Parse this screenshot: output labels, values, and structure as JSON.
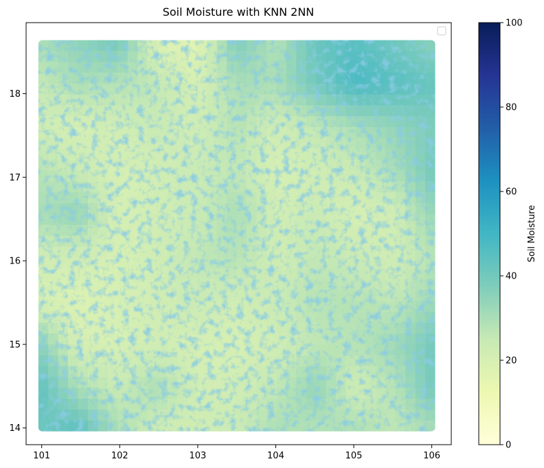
{
  "chart_data": {
    "type": "heatmap",
    "title": "Soil Moisture with KNN 2NN",
    "xlabel": "",
    "ylabel": "",
    "x_ticks": [
      101,
      102,
      103,
      104,
      105,
      106
    ],
    "y_ticks": [
      14,
      15,
      16,
      17,
      18
    ],
    "xlim": [
      100.8,
      106.25
    ],
    "ylim": [
      13.8,
      18.85
    ],
    "data_extent": {
      "x": [
        101.0,
        106.0
      ],
      "y": [
        14.0,
        18.6
      ]
    },
    "colorbar": {
      "label": "Soil Moisture",
      "range": [
        0,
        100
      ],
      "ticks": [
        0,
        20,
        40,
        60,
        80,
        100
      ],
      "colormap": "YlGnBu"
    },
    "legend": {
      "placement": "upper right",
      "entries": []
    },
    "grid": false,
    "colormap_stops": [
      "#ffffd9",
      "#edf8b1",
      "#c7e9b4",
      "#7fcdbb",
      "#41b6c4",
      "#1d91c0",
      "#225ea8",
      "#253494",
      "#081d58"
    ],
    "field_samples": {
      "x": [
        101.0,
        101.5,
        102.0,
        102.5,
        103.0,
        103.5,
        104.0,
        104.5,
        105.0,
        105.5,
        106.0
      ],
      "y": [
        18.6,
        18.1,
        17.6,
        17.1,
        16.6,
        16.1,
        15.6,
        15.1,
        14.6,
        14.0
      ],
      "values": [
        [
          30,
          35,
          40,
          18,
          16,
          38,
          28,
          42,
          45,
          40,
          35
        ],
        [
          25,
          30,
          28,
          26,
          20,
          30,
          30,
          40,
          48,
          45,
          42
        ],
        [
          22,
          20,
          22,
          24,
          22,
          28,
          22,
          26,
          30,
          34,
          38
        ],
        [
          28,
          24,
          20,
          22,
          24,
          26,
          20,
          22,
          24,
          30,
          40
        ],
        [
          30,
          34,
          20,
          22,
          24,
          30,
          22,
          24,
          20,
          22,
          34
        ],
        [
          22,
          22,
          20,
          22,
          26,
          28,
          22,
          26,
          24,
          22,
          28
        ],
        [
          20,
          18,
          20,
          22,
          24,
          22,
          24,
          28,
          28,
          26,
          32
        ],
        [
          36,
          20,
          20,
          22,
          20,
          20,
          22,
          26,
          28,
          32,
          40
        ],
        [
          44,
          30,
          24,
          30,
          22,
          22,
          26,
          34,
          22,
          28,
          40
        ],
        [
          40,
          45,
          30,
          22,
          22,
          24,
          30,
          28,
          30,
          26,
          30
        ]
      ]
    }
  }
}
